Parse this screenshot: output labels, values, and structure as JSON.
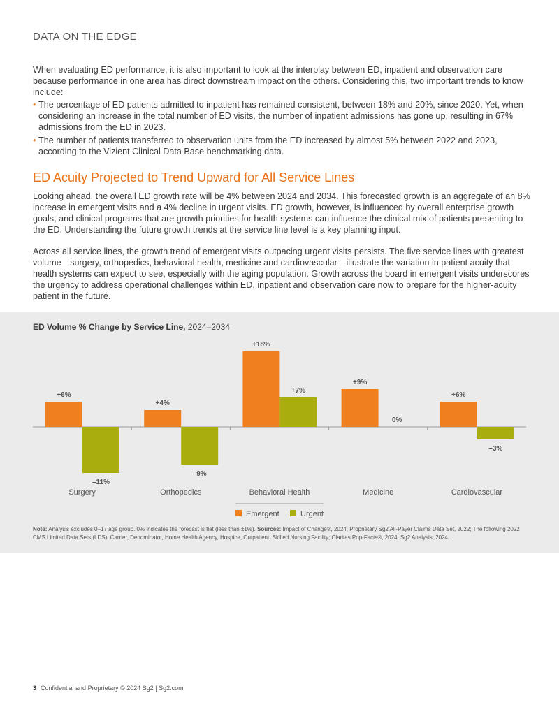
{
  "header": {
    "title": "DATA ON THE EDGE"
  },
  "intro": {
    "paragraph": "When evaluating ED performance, it is also important to look at the interplay between ED, inpatient and observation care because performance in one area has direct downstream impact on the others. Considering this, two important trends to know include:",
    "bullets": [
      "The percentage of ED patients admitted to inpatient has remained consistent, between 18% and 20%, since 2020. Yet, when considering an increase in the total number of ED visits, the number of inpatient admissions has gone up, resulting in 67% admissions from the ED in 2023.",
      "The number of patients transferred to observation units from the ED increased by almost 5% between 2022 and 2023, according to the Vizient Clinical Data Base benchmarking data."
    ]
  },
  "section": {
    "title": "ED Acuity Projected to Trend Upward for All Service Lines",
    "paragraph1": "Looking ahead, the overall ED growth rate will be 4% between 2024 and 2034. This forecasted growth is an aggregate of an 8% increase in emergent visits and a 4% decline in urgent visits. ED growth, however, is influenced by overall enterprise growth goals, and clinical programs that are growth priorities for health systems can influence the clinical mix of patients presenting to the ED. Understanding the future growth trends at the service line level is a key planning input.",
    "paragraph2": "Across all service lines, the growth trend of emergent visits outpacing urgent visits persists. The five service lines with greatest volume—surgery, orthopedics, behavioral health, medicine and cardiovascular—illustrate the variation in patient acuity that health systems can expect to see, especially with the aging population. Growth across the board in emergent visits underscores the urgency to address operational challenges within ED, inpatient and observation care now to prepare for the higher-acuity patient in the future."
  },
  "chart_title": {
    "bold": "ED Volume % Change by Service Line,",
    "normal": " 2024–2034"
  },
  "chart_data": {
    "type": "bar",
    "title": "ED Volume % Change by Service Line, 2024–2034",
    "categories": [
      "Surgery",
      "Orthopedics",
      "Behavioral Health",
      "Medicine",
      "Cardiovascular"
    ],
    "series": [
      {
        "name": "Emergent",
        "values": [
          6,
          4,
          18,
          9,
          6
        ],
        "labels": [
          "+6%",
          "+4%",
          "+18%",
          "+9%",
          "+6%"
        ],
        "color": "#f07f1d"
      },
      {
        "name": "Urgent",
        "values": [
          -11,
          -9,
          7,
          0,
          -3
        ],
        "labels": [
          "–11%",
          "–9%",
          "+7%",
          "0%",
          "–3%"
        ],
        "color": "#a9ae0e"
      }
    ],
    "ylim": [
      -11,
      18
    ],
    "grid": false,
    "legend": "bottom"
  },
  "note": {
    "note_label": "Note:",
    "note_text": " Analysis excludes 0–17 age group. 0% indicates the forecast is flat (less than ±1%). ",
    "sources_label": "Sources:",
    "sources_text": " Impact of Change®, 2024; Proprietary Sg2 All-Payer Claims Data Set, 2022; The following 2022 CMS Limited Data Sets (LDS): Carrier, Denominator, Home Health Agency, Hospice, Outpatient, Skilled Nursing Facility; Claritas Pop-Facts®, 2024; Sg2 Analysis, 2024."
  },
  "footer": {
    "page_number": "3",
    "text": "Confidential and Proprietary © 2024 Sg2 | Sg2.com"
  }
}
